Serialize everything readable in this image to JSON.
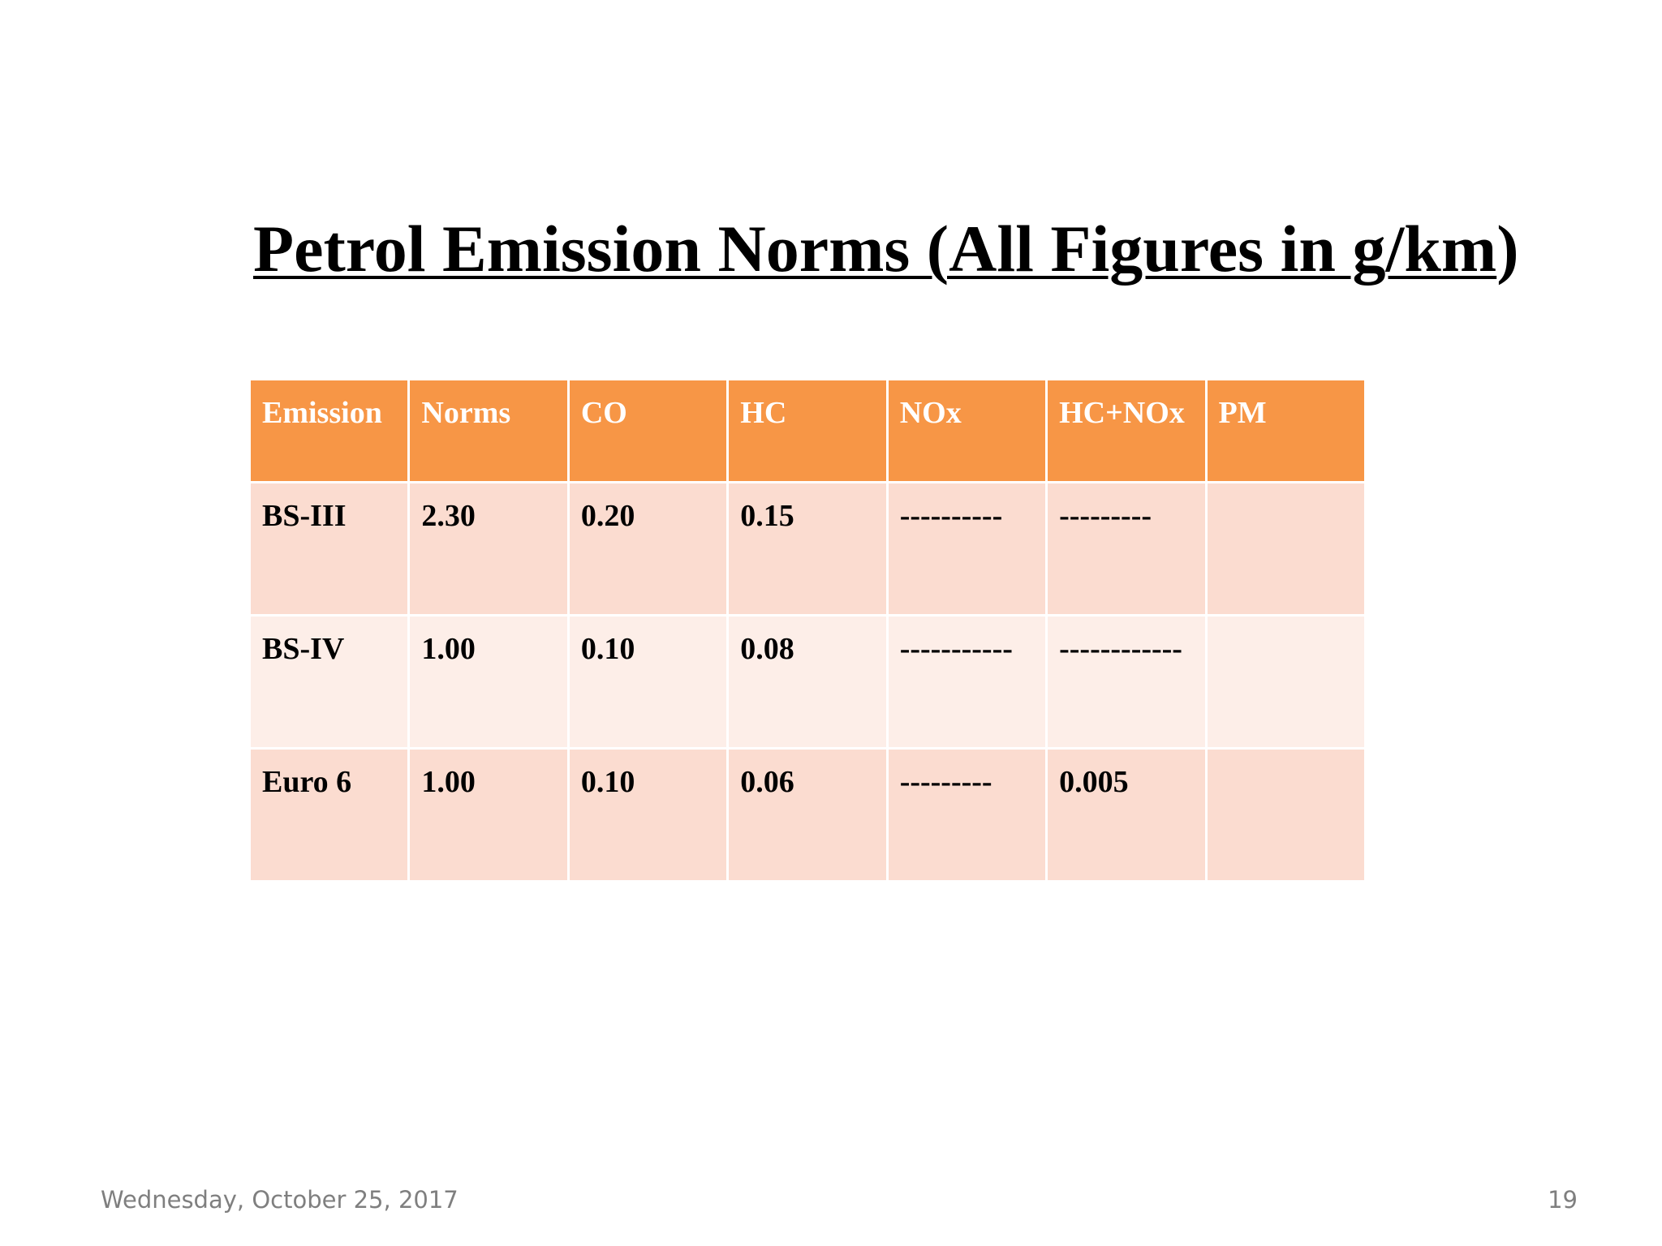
{
  "slide": {
    "title_underlined": "Petrol Emission Norms (All Figures in g/km",
    "title_tail": ")",
    "table": {
      "headers": [
        "Emission",
        "Norms",
        "CO",
        "HC",
        "NOx",
        "HC+NOx",
        "PM"
      ],
      "rows": [
        [
          "BS-III",
          "2.30",
          "0.20",
          "0.15",
          "----------",
          "---------",
          ""
        ],
        [
          "BS-IV",
          "1.00",
          "0.10",
          "0.08",
          "-----------",
          "------------",
          ""
        ],
        [
          "Euro 6",
          "1.00",
          "0.10",
          "0.06",
          "---------",
          "0.005",
          ""
        ]
      ]
    },
    "footer": {
      "date": "Wednesday, October 25, 2017",
      "page_number": "19"
    },
    "colors": {
      "header_fill": "#f79646",
      "row_fill_dark": "#fbdcd0",
      "row_fill_light": "#fdeee8"
    }
  }
}
